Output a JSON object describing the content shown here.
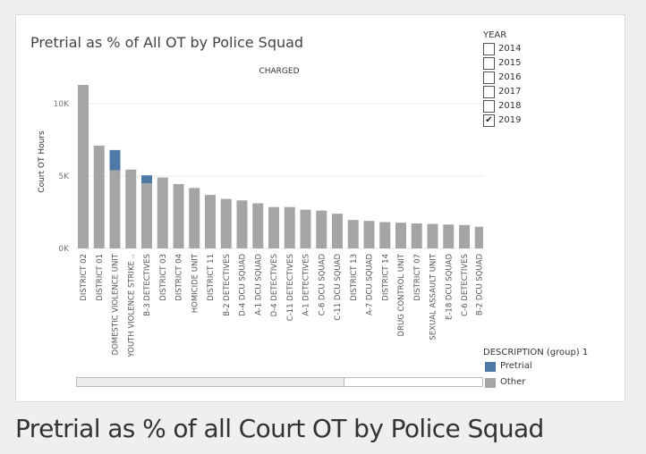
{
  "caption": "Pretrial as % of all Court OT by Police Squad",
  "chart_data": {
    "type": "bar",
    "stacked": true,
    "title": "Pretrial as % of All OT by Police Squad",
    "subtitle": "CHARGED",
    "ylabel": "Court OT Hours",
    "xlabel": "",
    "ylim": [
      0,
      11500
    ],
    "yticks": [
      {
        "value": 0,
        "label": "0K"
      },
      {
        "value": 5000,
        "label": "5K"
      },
      {
        "value": 10000,
        "label": "10K"
      }
    ],
    "grid": true,
    "categories": [
      "DISTRICT 02",
      "DISTRICT 01",
      "DOMESTIC VIOLENCE UNIT",
      "YOUTH VIOLENCE STRIKE ..",
      "B-3  DETECTIVES",
      "DISTRICT 03",
      "DISTRICT 04",
      "HOMICIDE UNIT",
      "DISTRICT 11",
      "B-2  DETECTIVES",
      "D-4  DCU SQUAD",
      "A-1  DCU SQUAD",
      "D-4  DETECTIVES",
      "C-11 DETECTIVES",
      "A-1  DETECTIVES",
      "C-6  DCU SQUAD",
      "C-11 DCU SQUAD",
      "DISTRICT 13",
      "A-7  DCU SQUAD",
      "DISTRICT 14",
      "DRUG CONTROL UNIT",
      "DISTRICT 07",
      "SEXUAL ASSAULT UNIT",
      "E-18 DCU SQUAD",
      "C-6  DETECTIVES",
      "B-2  DCU SQUAD"
    ],
    "series": [
      {
        "name": "Other",
        "color": "#a5a5a5",
        "values": [
          11300,
          7100,
          5400,
          5450,
          4500,
          4900,
          4450,
          4180,
          3700,
          3420,
          3320,
          3120,
          2860,
          2860,
          2680,
          2620,
          2400,
          1970,
          1900,
          1820,
          1780,
          1730,
          1700,
          1650,
          1620,
          1500
        ]
      },
      {
        "name": "Pretrial",
        "color": "#4e79a7",
        "values": [
          0,
          0,
          1400,
          0,
          550,
          0,
          0,
          0,
          0,
          0,
          0,
          0,
          0,
          0,
          0,
          0,
          0,
          0,
          0,
          0,
          0,
          0,
          0,
          0,
          0,
          0
        ]
      }
    ]
  },
  "year_filter": {
    "title": "YEAR",
    "options": [
      {
        "label": "2014",
        "checked": false,
        "mark": ""
      },
      {
        "label": "2015",
        "checked": false,
        "mark": ""
      },
      {
        "label": "2016",
        "checked": false,
        "mark": ""
      },
      {
        "label": "2017",
        "checked": false,
        "mark": ""
      },
      {
        "label": "2018",
        "checked": false,
        "mark": ""
      },
      {
        "label": "2019",
        "checked": true,
        "mark": "✔"
      }
    ]
  },
  "description_legend": {
    "title": "DESCRIPTION (group) 1",
    "items": [
      {
        "label": "Pretrial",
        "color": "#4e79a7"
      },
      {
        "label": "Other",
        "color": "#a5a5a5"
      }
    ]
  }
}
